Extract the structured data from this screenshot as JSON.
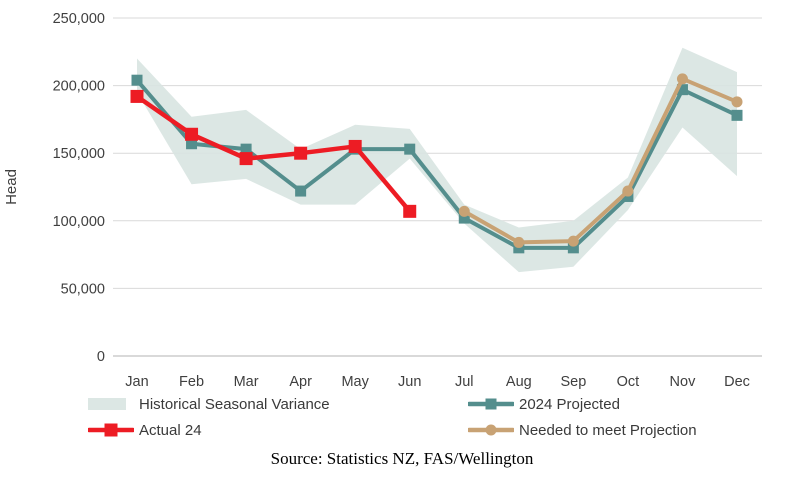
{
  "chart_data": {
    "type": "line",
    "title": "",
    "xlabel": "",
    "ylabel": "Head",
    "ylim": [
      0,
      250000
    ],
    "yticks": [
      0,
      50000,
      100000,
      150000,
      200000,
      250000
    ],
    "ytick_labels": [
      "0",
      "50,000",
      "100,000",
      "150,000",
      "200,000",
      "250,000"
    ],
    "categories": [
      "Jan",
      "Feb",
      "Mar",
      "Apr",
      "May",
      "Jun",
      "Jul",
      "Aug",
      "Sep",
      "Oct",
      "Nov",
      "Dec"
    ],
    "grid": "horizontal",
    "grid_color": "#d9d9d9",
    "axis_color": "#b3b3b3",
    "legend_position": "bottom",
    "series": [
      {
        "id": "historical-seasonal-variance",
        "name": "Historical Seasonal Variance",
        "type": "band",
        "color": "#d8e4e1",
        "opacity": 0.9,
        "upper": [
          220000,
          177000,
          182000,
          153000,
          171000,
          168000,
          112000,
          95000,
          100000,
          132000,
          228000,
          210000
        ],
        "lower": [
          195000,
          127000,
          131000,
          112000,
          112000,
          146000,
          98000,
          62000,
          66000,
          108000,
          169000,
          133000
        ]
      },
      {
        "id": "projected-2024",
        "name": "2024 Projected",
        "type": "line",
        "color": "#548e8d",
        "marker": "square",
        "marker_size": 11,
        "line_width": 4,
        "values": [
          204000,
          157000,
          153000,
          122000,
          153000,
          153000,
          102000,
          80000,
          80000,
          118000,
          197000,
          178000
        ]
      },
      {
        "id": "actual-24",
        "name": "Actual 24",
        "type": "line",
        "color": "#ed1c24",
        "marker": "square",
        "marker_size": 13,
        "line_width": 4.5,
        "values": [
          192000,
          164000,
          146000,
          150000,
          155000,
          107000,
          null,
          null,
          null,
          null,
          null,
          null
        ]
      },
      {
        "id": "needed-to-meet-projection",
        "name": "Needed to meet Projection",
        "type": "line",
        "color": "#c8a274",
        "marker": "circle",
        "marker_size": 11,
        "line_width": 4,
        "values": [
          null,
          null,
          null,
          null,
          null,
          null,
          107000,
          84000,
          85000,
          122000,
          205000,
          188000
        ]
      }
    ]
  },
  "source": {
    "text": "Source: Statistics NZ, FAS/Wellington"
  }
}
